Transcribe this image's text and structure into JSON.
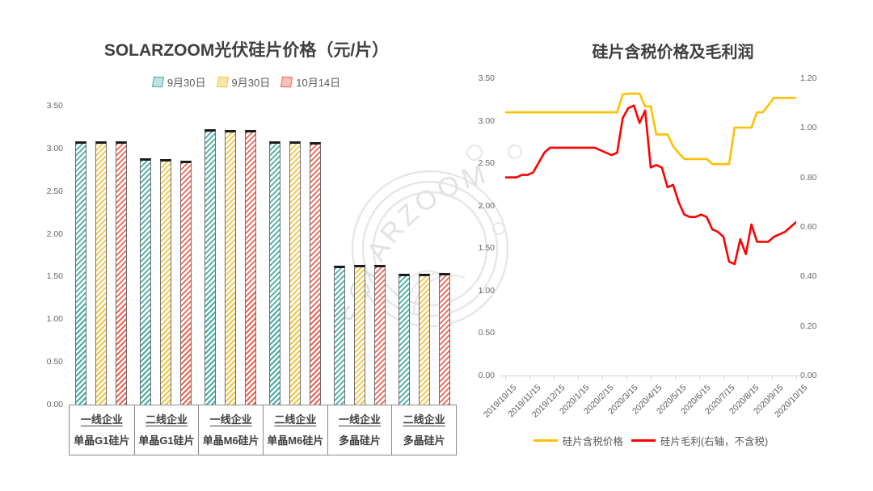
{
  "watermark": {
    "text": "SOLARZOOM"
  },
  "chart_data": [
    {
      "type": "bar",
      "title": "SOLARZOOM光伏硅片价格（元/片）",
      "xlabel": "",
      "ylabel": "",
      "ylim": [
        0,
        3.5
      ],
      "ytick_step": 0.5,
      "grid": false,
      "legend_position": "top",
      "categories": [
        {
          "tier": "一线企业",
          "product": "单晶G1硅片"
        },
        {
          "tier": "二线企业",
          "product": "单晶G1硅片"
        },
        {
          "tier": "一线企业",
          "product": "单晶M6硅片"
        },
        {
          "tier": "二线企业",
          "product": "单晶M6硅片"
        },
        {
          "tier": "一线企业",
          "product": "多晶硅片"
        },
        {
          "tier": "二线企业",
          "product": "多晶硅片"
        }
      ],
      "series": [
        {
          "name": "9月30日",
          "color": "#45ACA5",
          "legend_fill": "#BFE3E0",
          "values": [
            3.08,
            2.89,
            3.23,
            3.08,
            1.63,
            1.53
          ]
        },
        {
          "name": "9月30日",
          "color": "#F5C242",
          "legend_fill": "#F8E5AB",
          "values": [
            3.08,
            2.88,
            3.22,
            3.08,
            1.64,
            1.53
          ]
        },
        {
          "name": "10月14日",
          "color": "#EF6352",
          "legend_fill": "#F6C3B8",
          "values": [
            3.08,
            2.86,
            3.22,
            3.07,
            1.64,
            1.54
          ]
        }
      ]
    },
    {
      "type": "line",
      "title": "硅片含税价格及毛利润",
      "left_ylim": [
        0,
        3.5
      ],
      "left_ytick_step": 0.5,
      "right_ylim": [
        0,
        1.2
      ],
      "right_ytick_step": 0.2,
      "grid": false,
      "legend_position": "bottom",
      "x_tick_labels": [
        "2019/10/15",
        "2019/11/15",
        "2019/12/15",
        "2020/1/15",
        "2020/2/15",
        "2020/3/15",
        "2020/4/15",
        "2020/5/15",
        "2020/6/15",
        "2020/7/15",
        "2020/8/15",
        "2020/9/15",
        "2020/10/15"
      ],
      "series": [
        {
          "name": "硅片含税价格",
          "axis": "left",
          "color": "#FFC000",
          "values": [
            3.1,
            3.1,
            3.1,
            3.1,
            3.1,
            3.1,
            3.1,
            3.1,
            3.1,
            3.1,
            3.1,
            3.1,
            3.1,
            3.1,
            3.1,
            3.1,
            3.1,
            3.1,
            3.1,
            3.1,
            3.1,
            3.31,
            3.32,
            3.32,
            3.32,
            3.17,
            3.17,
            2.84,
            2.84,
            2.84,
            2.7,
            2.62,
            2.55,
            2.55,
            2.55,
            2.55,
            2.55,
            2.49,
            2.49,
            2.49,
            2.49,
            2.92,
            2.92,
            2.92,
            2.92,
            3.1,
            3.1,
            3.18,
            3.27,
            3.27,
            3.27,
            3.27,
            3.27
          ]
        },
        {
          "name": "硅片毛利(右轴，不含税)",
          "axis": "right",
          "color": "#FF0000",
          "values": [
            0.8,
            0.8,
            0.8,
            0.81,
            0.81,
            0.82,
            0.86,
            0.9,
            0.92,
            0.92,
            0.92,
            0.92,
            0.92,
            0.92,
            0.92,
            0.92,
            0.92,
            0.91,
            0.9,
            0.89,
            0.9,
            1.04,
            1.08,
            1.09,
            1.02,
            1.07,
            0.84,
            0.85,
            0.84,
            0.76,
            0.77,
            0.7,
            0.65,
            0.64,
            0.64,
            0.65,
            0.64,
            0.59,
            0.58,
            0.56,
            0.46,
            0.45,
            0.55,
            0.49,
            0.61,
            0.54,
            0.54,
            0.54,
            0.56,
            0.57,
            0.58,
            0.6,
            0.62
          ]
        }
      ]
    }
  ]
}
